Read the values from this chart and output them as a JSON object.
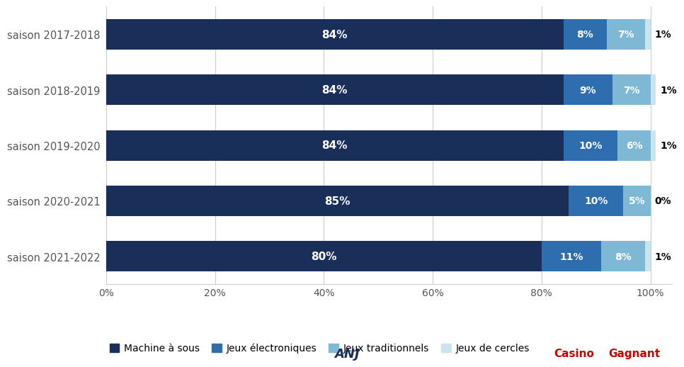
{
  "seasons": [
    "saison 2017-2018",
    "saison 2018-2019",
    "saison 2019-2020",
    "saison 2020-2021",
    "saison 2021-2022"
  ],
  "machine_a_sous": [
    84,
    84,
    84,
    85,
    80
  ],
  "jeux_electroniques": [
    8,
    9,
    10,
    10,
    11
  ],
  "jeux_traditionnels": [
    7,
    7,
    6,
    5,
    8
  ],
  "jeux_de_cercles": [
    1,
    1,
    1,
    0,
    1
  ],
  "labels_machine": [
    "84%",
    "84%",
    "84%",
    "85%",
    "80%"
  ],
  "labels_electroniques": [
    "8%",
    "9%",
    "10%",
    "10%",
    "11%"
  ],
  "labels_traditionnels": [
    "7%",
    "7%",
    "6%",
    "5%",
    "8%"
  ],
  "labels_cercles": [
    "1%",
    "1%",
    "1%",
    "0%",
    "1%"
  ],
  "color_machine": "#1a2e5a",
  "color_electroniques": "#2e6dae",
  "color_traditionnels": "#7eb8d4",
  "color_cercles": "#c9e3ef",
  "legend_labels": [
    "Machine à sous",
    "Jeux électroniques",
    "Jeux traditionnels",
    "Jeux de cercles"
  ],
  "background_color": "#ffffff",
  "grid_color": "#cccccc",
  "bar_height": 0.55
}
